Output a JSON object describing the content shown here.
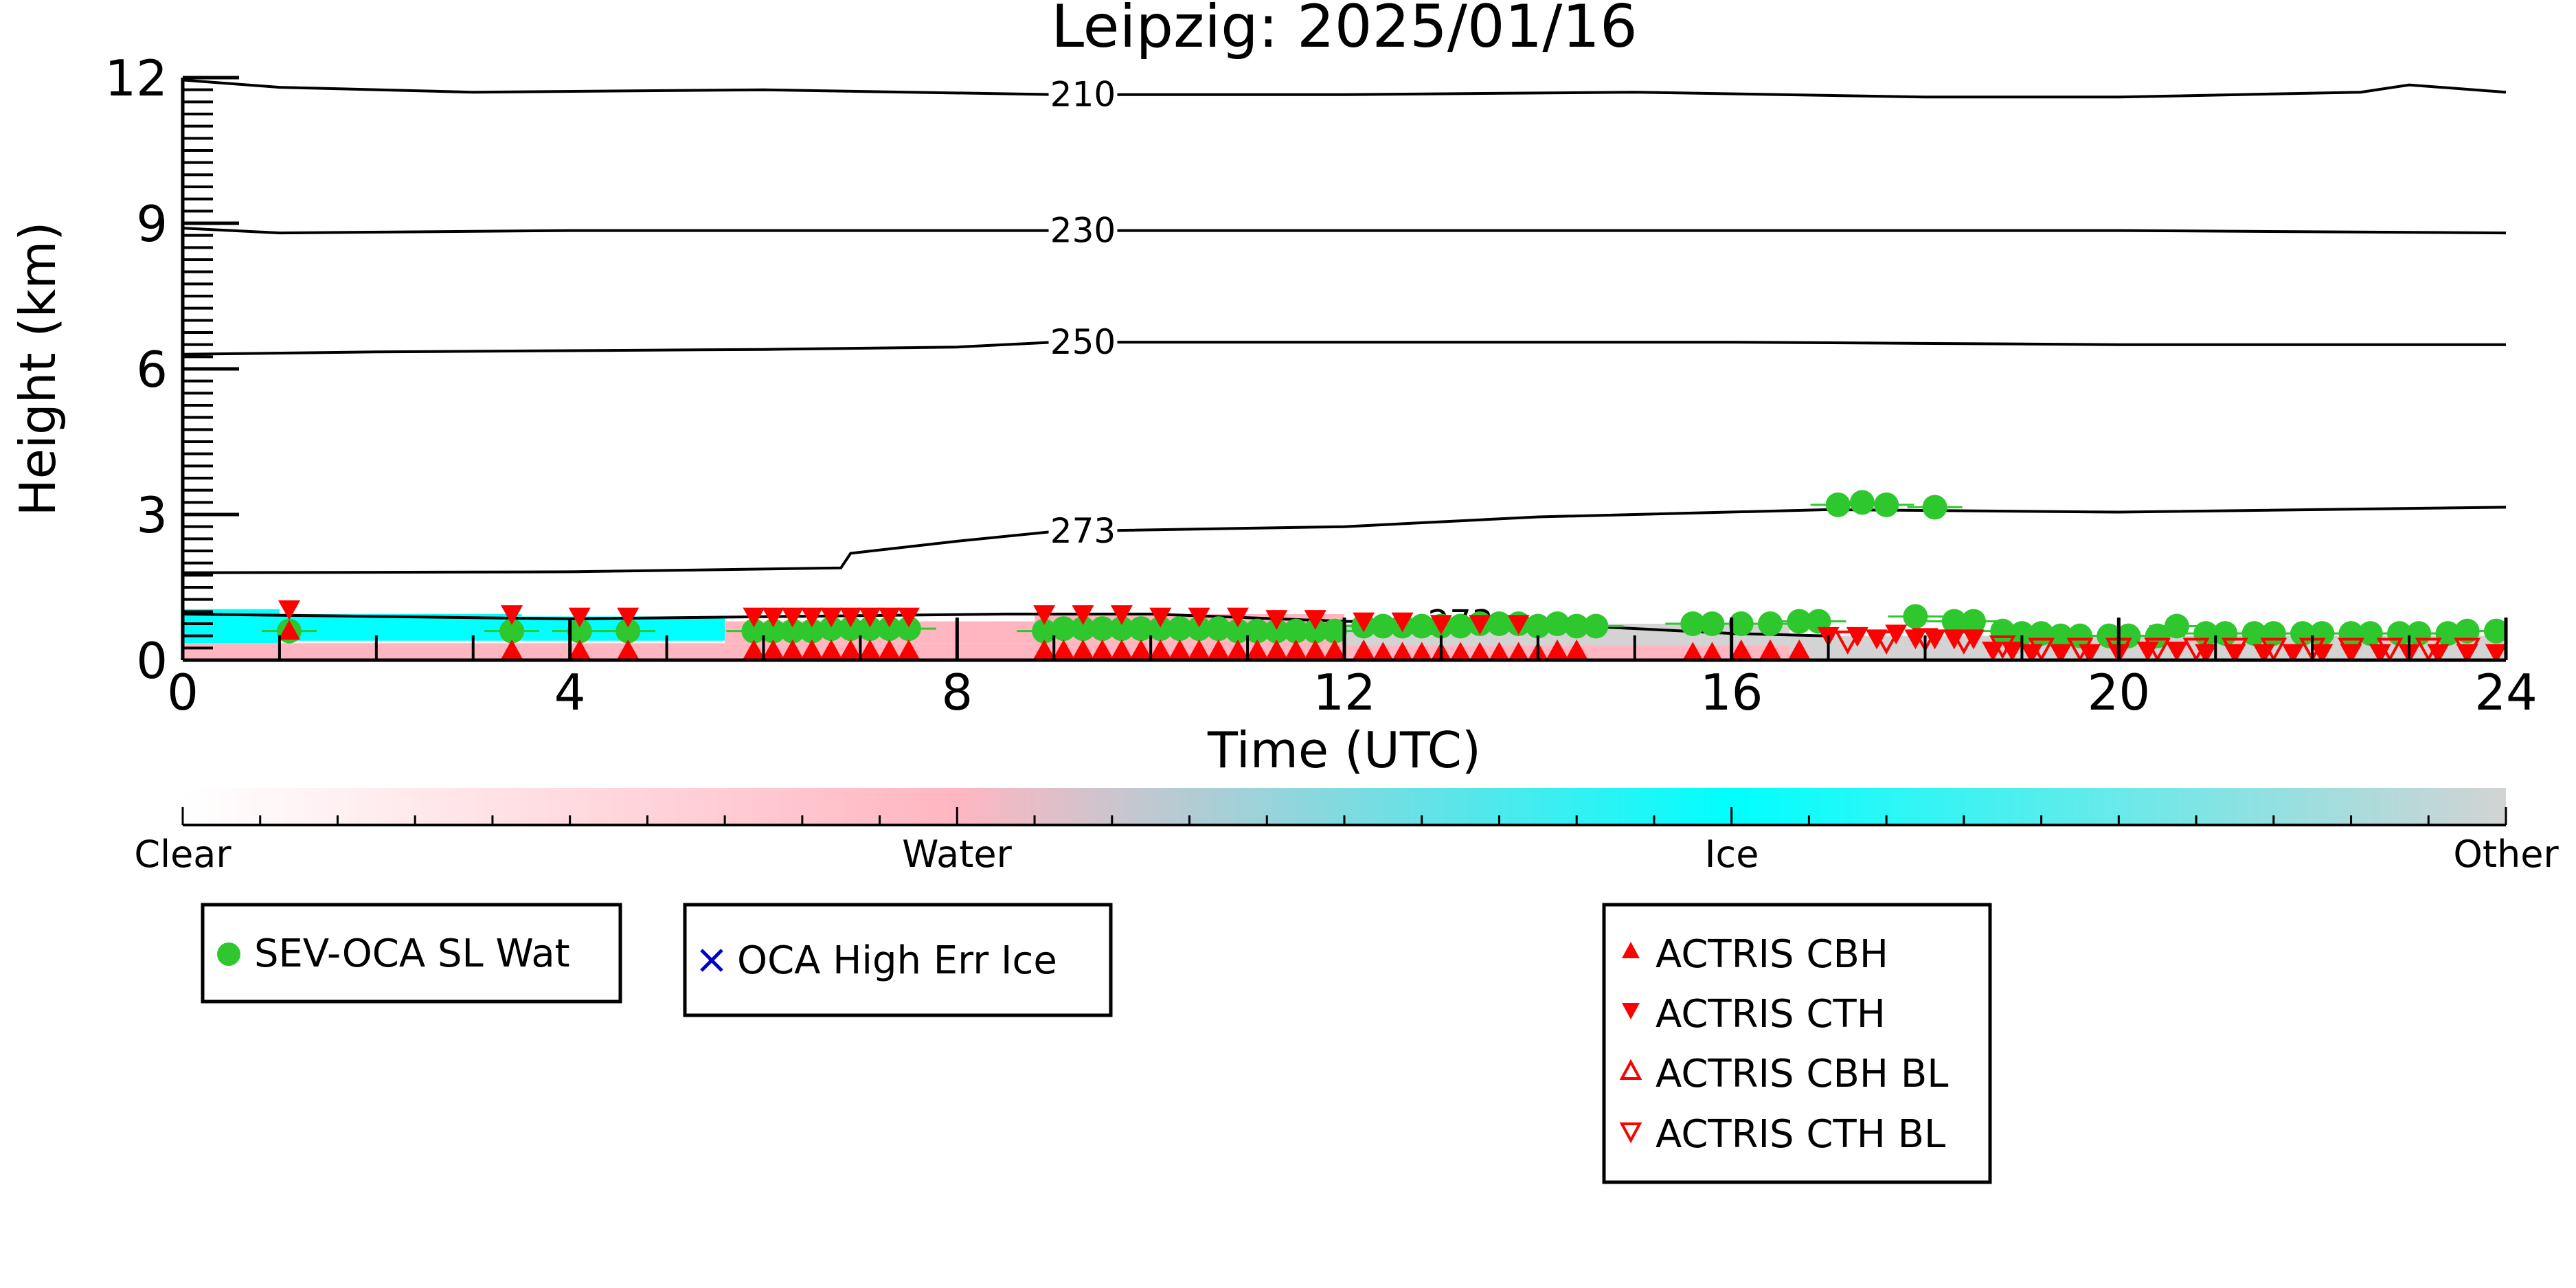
{
  "chart_data": {
    "type": "scatter",
    "title": "Leipzig: 2025/01/16",
    "xlabel": "Time (UTC)",
    "ylabel": "Height (km)",
    "xlim": [
      0,
      24
    ],
    "ylim": [
      0,
      12
    ],
    "xticks": [
      "0",
      "4",
      "8",
      "12",
      "16",
      "20",
      "24"
    ],
    "yticks": [
      "0",
      "3",
      "6",
      "9",
      "12"
    ],
    "contours": [
      {
        "label": "210",
        "x": [
          0,
          1,
          3,
          6,
          9,
          12,
          15,
          18,
          20,
          22.5,
          23,
          24
        ],
        "y": [
          11.95,
          11.8,
          11.7,
          11.75,
          11.65,
          11.65,
          11.7,
          11.6,
          11.6,
          11.7,
          11.85,
          11.7
        ]
      },
      {
        "label": "230",
        "x": [
          0,
          1,
          4,
          8,
          12,
          16,
          20,
          24
        ],
        "y": [
          8.9,
          8.8,
          8.85,
          8.85,
          8.85,
          8.85,
          8.85,
          8.8
        ]
      },
      {
        "label": "250",
        "x": [
          0,
          2,
          6,
          8,
          9,
          12,
          16,
          20,
          24
        ],
        "y": [
          6.3,
          6.35,
          6.4,
          6.45,
          6.55,
          6.55,
          6.55,
          6.5,
          6.5
        ]
      },
      {
        "label": "273",
        "x": [
          0,
          4,
          6.8,
          6.9,
          8,
          9,
          12,
          14,
          17,
          20,
          24
        ],
        "y": [
          1.8,
          1.82,
          1.9,
          2.2,
          2.45,
          2.65,
          2.75,
          2.95,
          3.1,
          3.05,
          3.15
        ]
      },
      {
        "label": "273",
        "x": [
          0,
          4,
          8.5,
          10,
          12,
          14,
          16,
          17
        ],
        "y": [
          0.95,
          0.85,
          0.95,
          0.95,
          0.8,
          0.75,
          0.55,
          0.5
        ]
      }
    ],
    "contour_label_x": [
      9.3,
      9.3,
      9.3,
      9.3,
      13.2
    ],
    "phase_segments": [
      {
        "phase": "Water",
        "x0": 0,
        "x1": 24,
        "y0": 0,
        "y1": 0.35
      },
      {
        "phase": "Ice",
        "x0": 0,
        "x1": 1.0,
        "y0": 0.35,
        "y1": 1.05
      },
      {
        "phase": "Ice",
        "x0": 1.0,
        "x1": 3.5,
        "y0": 0.4,
        "y1": 0.95
      },
      {
        "phase": "Ice",
        "x0": 3.5,
        "x1": 5.6,
        "y0": 0.4,
        "y1": 0.9
      },
      {
        "phase": "Water",
        "x0": 5.6,
        "x1": 8.8,
        "y0": 0.35,
        "y1": 0.8
      },
      {
        "phase": "Water",
        "x0": 8.8,
        "x1": 12.0,
        "y0": 0.3,
        "y1": 0.95
      },
      {
        "phase": "Other",
        "x0": 12.0,
        "x1": 16.6,
        "y0": 0.3,
        "y1": 0.75
      },
      {
        "phase": "Other",
        "x0": 16.6,
        "x1": 24,
        "y0": 0.0,
        "y1": 0.5
      }
    ],
    "series": [
      {
        "name": "SEV-OCA SL Wat",
        "marker": "circle",
        "color": "#2ec82e",
        "x": [
          1.1,
          3.4,
          4.1,
          4.6,
          5.9,
          6.1,
          6.3,
          6.5,
          6.7,
          6.9,
          7.1,
          7.3,
          7.5,
          8.9,
          9.1,
          9.3,
          9.5,
          9.7,
          9.9,
          10.1,
          10.3,
          10.5,
          10.7,
          10.9,
          11.1,
          11.3,
          11.5,
          11.7,
          11.9,
          12.2,
          12.4,
          12.6,
          12.8,
          13.0,
          13.2,
          13.4,
          13.6,
          13.8,
          14.0,
          14.2,
          14.4,
          14.6,
          15.6,
          15.8,
          16.1,
          16.4,
          16.7,
          16.9,
          17.1,
          17.35,
          17.6,
          18.1,
          17.9,
          18.3,
          18.5,
          18.8,
          19.0,
          19.2,
          19.4,
          19.6,
          19.9,
          20.1,
          20.4,
          20.6,
          20.9,
          21.1,
          21.4,
          21.6,
          21.9,
          22.1,
          22.4,
          22.6,
          22.9,
          23.1,
          23.4,
          23.6,
          23.9
        ],
        "y": [
          0.6,
          0.6,
          0.6,
          0.6,
          0.6,
          0.6,
          0.6,
          0.6,
          0.65,
          0.65,
          0.65,
          0.65,
          0.65,
          0.6,
          0.65,
          0.65,
          0.65,
          0.65,
          0.65,
          0.65,
          0.65,
          0.65,
          0.65,
          0.6,
          0.6,
          0.6,
          0.6,
          0.6,
          0.6,
          0.7,
          0.7,
          0.7,
          0.7,
          0.7,
          0.7,
          0.75,
          0.75,
          0.75,
          0.7,
          0.75,
          0.7,
          0.7,
          0.75,
          0.75,
          0.75,
          0.75,
          0.8,
          0.8,
          3.2,
          3.25,
          3.2,
          3.15,
          0.9,
          0.8,
          0.8,
          0.6,
          0.55,
          0.55,
          0.5,
          0.5,
          0.5,
          0.5,
          0.5,
          0.7,
          0.55,
          0.55,
          0.55,
          0.55,
          0.55,
          0.55,
          0.55,
          0.55,
          0.55,
          0.55,
          0.55,
          0.6,
          0.6
        ]
      },
      {
        "name": "OCA High Err Ice",
        "marker": "x",
        "color": "#0000cc",
        "x": [],
        "y": []
      },
      {
        "name": "ACTRIS CBH",
        "marker": "triangle-up",
        "color": "#ff0000",
        "x": [
          1.1,
          3.4,
          4.1,
          4.6,
          5.9,
          6.1,
          6.3,
          6.5,
          6.7,
          6.9,
          7.1,
          7.3,
          7.5,
          8.9,
          9.1,
          9.3,
          9.5,
          9.7,
          9.9,
          10.1,
          10.3,
          10.5,
          10.7,
          10.9,
          11.1,
          11.3,
          11.5,
          11.7,
          11.9,
          12.2,
          12.4,
          12.6,
          12.8,
          13.0,
          13.2,
          13.4,
          13.6,
          13.8,
          14.0,
          14.2,
          14.4,
          15.6,
          15.8,
          16.1,
          16.4,
          16.7
        ],
        "y": [
          0.6,
          0.2,
          0.2,
          0.2,
          0.2,
          0.2,
          0.2,
          0.2,
          0.2,
          0.2,
          0.2,
          0.2,
          0.2,
          0.2,
          0.2,
          0.2,
          0.2,
          0.2,
          0.2,
          0.2,
          0.2,
          0.2,
          0.2,
          0.2,
          0.2,
          0.2,
          0.2,
          0.2,
          0.2,
          0.2,
          0.15,
          0.15,
          0.15,
          0.15,
          0.15,
          0.15,
          0.15,
          0.15,
          0.15,
          0.2,
          0.2,
          0.15,
          0.15,
          0.2,
          0.2,
          0.2
        ]
      },
      {
        "name": "ACTRIS CTH",
        "marker": "triangle-down",
        "color": "#ff0000",
        "x": [
          1.1,
          3.4,
          4.1,
          4.6,
          5.9,
          6.1,
          6.3,
          6.5,
          6.7,
          6.9,
          7.1,
          7.3,
          7.5,
          8.9,
          9.3,
          9.7,
          10.1,
          10.5,
          10.9,
          11.3,
          11.7,
          12.2,
          12.6,
          13.0,
          13.4,
          13.8,
          17.0,
          17.3,
          17.5,
          17.7,
          17.9,
          18.1,
          18.3,
          18.5,
          18.7,
          18.9,
          19.1,
          19.4,
          19.7,
          20.0,
          20.3,
          20.6,
          20.9,
          21.2,
          21.5,
          21.8,
          22.1,
          22.4,
          22.7,
          23.0,
          23.3,
          23.6,
          23.9
        ],
        "y": [
          1.05,
          0.95,
          0.9,
          0.9,
          0.9,
          0.9,
          0.9,
          0.9,
          0.9,
          0.9,
          0.9,
          0.9,
          0.9,
          0.95,
          0.95,
          0.95,
          0.9,
          0.9,
          0.9,
          0.85,
          0.85,
          0.8,
          0.8,
          0.75,
          0.75,
          0.75,
          0.5,
          0.5,
          0.45,
          0.55,
          0.45,
          0.45,
          0.45,
          0.45,
          0.2,
          0.2,
          0.15,
          0.15,
          0.15,
          0.15,
          0.2,
          0.2,
          0.15,
          0.15,
          0.15,
          0.15,
          0.15,
          0.15,
          0.15,
          0.15,
          0.15,
          0.15,
          0.15
        ]
      },
      {
        "name": "ACTRIS CBH BL",
        "marker": "triangle-up-open",
        "color": "#ff0000",
        "x": [],
        "y": []
      },
      {
        "name": "ACTRIS CTH BL",
        "marker": "triangle-down-open",
        "color": "#ff0000",
        "x": [
          17.2,
          17.6,
          18.0,
          18.4,
          18.8,
          19.2,
          19.6,
          20.0,
          20.4,
          20.8,
          21.2,
          21.6,
          22.0,
          22.4,
          22.8,
          23.2,
          23.6
        ],
        "y": [
          0.4,
          0.4,
          0.45,
          0.4,
          0.3,
          0.25,
          0.25,
          0.25,
          0.25,
          0.25,
          0.25,
          0.25,
          0.25,
          0.25,
          0.25,
          0.25,
          0.25
        ]
      }
    ],
    "colorbar": {
      "labels": [
        "Clear",
        "Water",
        "Ice",
        "Other"
      ],
      "colors": [
        "#ffffff",
        "#ffb6c1",
        "#00ffff",
        "#d3d3d3"
      ]
    },
    "legends": [
      {
        "entries": [
          "SEV-OCA SL Wat"
        ]
      },
      {
        "entries": [
          "OCA High Err Ice"
        ]
      },
      {
        "entries": [
          "ACTRIS CBH",
          "ACTRIS CTH",
          "ACTRIS CBH BL",
          "ACTRIS CTH BL"
        ]
      }
    ],
    "grid": false
  }
}
